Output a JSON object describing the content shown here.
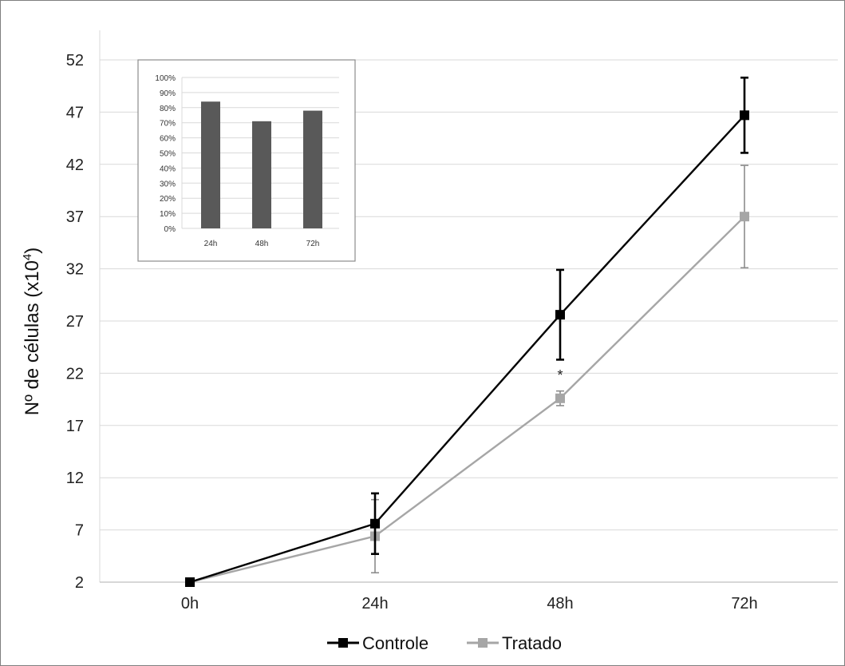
{
  "chart_data": [
    {
      "type": "line",
      "categories": [
        "0h",
        "24h",
        "48h",
        "72h"
      ],
      "ylabel": "Nº de células (x10",
      "ylabel_sup": "4",
      "ylabel_end": ")",
      "ylim": [
        2,
        55
      ],
      "yticks": [
        2,
        7,
        12,
        17,
        22,
        27,
        32,
        37,
        42,
        47,
        52
      ],
      "grid": true,
      "legend_position": "bottom",
      "series": [
        {
          "name": "Controle",
          "color": "#000000",
          "values": [
            2,
            7.6,
            27.6,
            46.7
          ],
          "errors": [
            0,
            2.9,
            4.3,
            3.6
          ]
        },
        {
          "name": "Tratado",
          "color": "#a6a6a6",
          "values": [
            2,
            6.4,
            19.6,
            37
          ],
          "errors": [
            0,
            3.5,
            0.7,
            4.9
          ]
        }
      ],
      "annotations": [
        {
          "text": "*",
          "category": "48h",
          "y": 21.8
        }
      ]
    },
    {
      "type": "bar",
      "inset": true,
      "categories": [
        "24h",
        "48h",
        "72h"
      ],
      "values": [
        84,
        71,
        78
      ],
      "ylim": [
        0,
        100
      ],
      "yticks": [
        "0%",
        "10%",
        "20%",
        "30%",
        "40%",
        "50%",
        "60%",
        "70%",
        "80%",
        "90%",
        "100%"
      ],
      "bar_color": "#595959",
      "grid": true
    }
  ]
}
